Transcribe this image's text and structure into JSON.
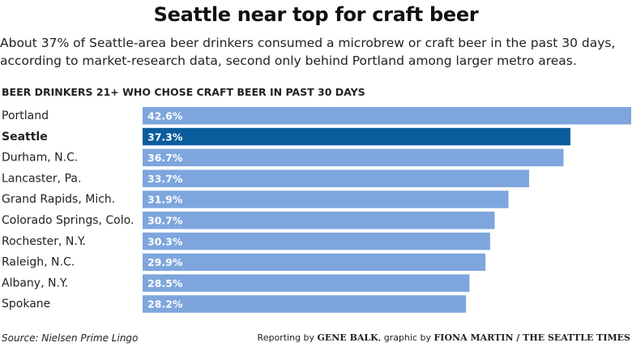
{
  "title": "Seattle near top for craft beer",
  "subtitle": "About 37% of Seattle-area beer drinkers consumed a microbrew or craft beer in the past 30 days, according to market-research data, second only behind Portland among larger metro areas.",
  "footer": {
    "source": "Source: Nielsen Prime Lingo",
    "credit_prefix": "Reporting by ",
    "reporter": "GENE BALK",
    "credit_mid": ", graphic by ",
    "graphic": "FIONA MARTIN / THE SEATTLE TIMES"
  },
  "colors": {
    "bar": "#7ea6dd",
    "highlight": "#0a5d9c",
    "label_text": "#ffffff"
  },
  "chart_data": {
    "type": "bar",
    "orientation": "horizontal",
    "title": "BEER DRINKERS 21+ WHO CHOSE CRAFT BEER IN PAST 30 DAYS",
    "categories": [
      "Portland",
      "Seattle",
      "Durham, N.C.",
      "Lancaster, Pa.",
      "Grand Rapids, Mich.",
      "Colorado Springs, Colo.",
      "Rochester, N.Y.",
      "Raleigh, N.C.",
      "Albany, N.Y.",
      "Spokane"
    ],
    "values": [
      42.6,
      37.3,
      36.7,
      33.7,
      31.9,
      30.7,
      30.3,
      29.9,
      28.5,
      28.2
    ],
    "value_labels": [
      "42.6%",
      "37.3%",
      "36.7%",
      "33.7%",
      "31.9%",
      "30.7%",
      "30.3%",
      "29.9%",
      "28.5%",
      "28.2%"
    ],
    "highlight": "Seattle",
    "xlim": [
      0,
      42.6
    ],
    "grid": false,
    "legend": "none"
  }
}
